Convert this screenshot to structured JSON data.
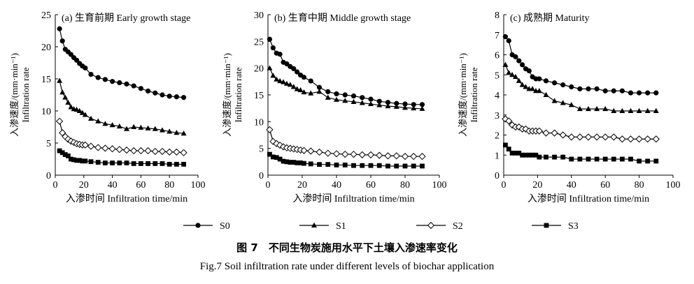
{
  "figure": {
    "title_cn": "图 7　不同生物炭施用水平下土壤入渗速率变化",
    "title_en": "Fig.7   Soil infiltration rate under different levels of biochar application"
  },
  "legend": {
    "placement": "bottom",
    "items": [
      {
        "name": "S0",
        "marker": "circle-filled"
      },
      {
        "name": "S1",
        "marker": "triangle-filled"
      },
      {
        "name": "S2",
        "marker": "diamond-open"
      },
      {
        "name": "S3",
        "marker": "square-filled"
      }
    ]
  },
  "chart_data": [
    {
      "type": "line",
      "title": "(a) 生育前期 Early growth stage",
      "xlabel": "入渗时间 Infiltration time/min",
      "ylabel": "入渗速度/(mm·min⁻¹)",
      "ylabel_en": "Infiltration rate",
      "xlim": [
        0,
        100
      ],
      "ylim": [
        0,
        25
      ],
      "xticks": [
        0,
        20,
        40,
        60,
        80,
        100
      ],
      "yticks": [
        0,
        5,
        10,
        15,
        20,
        25
      ],
      "grid": false,
      "series": [
        {
          "name": "S0",
          "marker": "circle-filled",
          "x": [
            3,
            5,
            7,
            9,
            11,
            13,
            15,
            17,
            19,
            21,
            25,
            30,
            35,
            40,
            45,
            50,
            55,
            60,
            65,
            70,
            75,
            80,
            85,
            90
          ],
          "y": [
            22.8,
            20.9,
            19.6,
            19.2,
            18.8,
            18.3,
            17.9,
            17.4,
            17.0,
            16.7,
            15.7,
            15.2,
            14.9,
            14.6,
            14.4,
            14.2,
            13.9,
            13.5,
            13.1,
            12.8,
            12.5,
            12.3,
            12.2,
            12.1
          ]
        },
        {
          "name": "S1",
          "marker": "triangle-filled",
          "x": [
            3,
            5,
            7,
            9,
            11,
            13,
            15,
            17,
            19,
            21,
            25,
            30,
            35,
            40,
            45,
            50,
            55,
            60,
            65,
            70,
            75,
            80,
            85,
            90
          ],
          "y": [
            14.7,
            12.9,
            12.1,
            11.3,
            10.6,
            10.3,
            10.2,
            10.0,
            9.7,
            9.4,
            8.8,
            8.4,
            8.0,
            7.8,
            7.6,
            7.2,
            7.5,
            7.4,
            7.3,
            7.2,
            7.0,
            6.8,
            6.6,
            6.5
          ]
        },
        {
          "name": "S2",
          "marker": "diamond-open",
          "x": [
            3,
            5,
            7,
            9,
            11,
            13,
            15,
            17,
            19,
            21,
            25,
            30,
            35,
            40,
            45,
            50,
            55,
            60,
            65,
            70,
            75,
            80,
            85,
            90
          ],
          "y": [
            8.4,
            6.6,
            6.0,
            5.6,
            5.3,
            5.1,
            4.9,
            4.8,
            4.7,
            4.7,
            4.5,
            4.3,
            4.2,
            4.1,
            4.0,
            3.9,
            3.8,
            3.8,
            3.8,
            3.7,
            3.7,
            3.6,
            3.6,
            3.5
          ]
        },
        {
          "name": "S3",
          "marker": "square-filled",
          "x": [
            3,
            5,
            7,
            9,
            11,
            13,
            15,
            17,
            19,
            21,
            25,
            30,
            35,
            40,
            45,
            50,
            55,
            60,
            65,
            70,
            75,
            80,
            85,
            90
          ],
          "y": [
            3.8,
            3.5,
            3.2,
            3.0,
            2.5,
            2.4,
            2.3,
            2.3,
            2.2,
            2.2,
            2.1,
            2.0,
            1.9,
            1.9,
            1.9,
            1.9,
            1.8,
            1.8,
            1.8,
            1.8,
            1.8,
            1.7,
            1.7,
            1.7
          ]
        }
      ]
    },
    {
      "type": "line",
      "title": "(b) 生育中期 Middle growth stage",
      "xlabel": "入渗时间 Infiltration time/min",
      "ylabel": "入渗速度/(mm·min⁻¹)",
      "ylabel_en": "Infiltration rate",
      "xlim": [
        0,
        100
      ],
      "ylim": [
        0,
        30
      ],
      "xticks": [
        0,
        20,
        40,
        60,
        80,
        100
      ],
      "yticks": [
        0,
        5,
        10,
        15,
        20,
        25,
        30
      ],
      "grid": false,
      "series": [
        {
          "name": "S0",
          "marker": "circle-filled",
          "x": [
            1,
            3,
            5,
            7,
            9,
            11,
            13,
            15,
            17,
            19,
            21,
            25,
            30,
            35,
            40,
            45,
            50,
            55,
            60,
            65,
            70,
            75,
            80,
            85,
            90
          ],
          "y": [
            25.4,
            23.8,
            22.8,
            22.6,
            21.1,
            20.8,
            20.3,
            19.9,
            19.3,
            18.7,
            18.3,
            17.6,
            16.4,
            15.6,
            15.2,
            15.0,
            14.8,
            14.5,
            14.2,
            13.8,
            13.6,
            13.4,
            13.3,
            13.2,
            13.2
          ]
        },
        {
          "name": "S1",
          "marker": "triangle-filled",
          "x": [
            1,
            3,
            5,
            7,
            9,
            11,
            13,
            15,
            17,
            19,
            21,
            25,
            30,
            35,
            40,
            45,
            50,
            55,
            60,
            65,
            70,
            75,
            80,
            85,
            90
          ],
          "y": [
            20.0,
            18.6,
            17.9,
            17.6,
            17.4,
            17.1,
            16.9,
            16.5,
            16.1,
            15.9,
            15.5,
            15.3,
            15.6,
            14.5,
            14.1,
            13.9,
            13.7,
            13.5,
            13.3,
            13.1,
            12.9,
            12.8,
            12.6,
            12.5,
            12.4
          ]
        },
        {
          "name": "S2",
          "marker": "diamond-open",
          "x": [
            1,
            3,
            5,
            7,
            9,
            11,
            13,
            15,
            17,
            19,
            21,
            25,
            30,
            35,
            40,
            45,
            50,
            55,
            60,
            65,
            70,
            75,
            80,
            85,
            90
          ],
          "y": [
            8.5,
            6.3,
            5.9,
            5.6,
            5.3,
            5.1,
            5.0,
            4.9,
            4.8,
            4.7,
            4.6,
            4.5,
            4.3,
            4.1,
            4.0,
            3.9,
            3.9,
            3.8,
            3.8,
            3.7,
            3.6,
            3.6,
            3.5,
            3.5,
            3.5
          ]
        },
        {
          "name": "S3",
          "marker": "square-filled",
          "x": [
            1,
            3,
            5,
            7,
            9,
            11,
            13,
            15,
            17,
            19,
            21,
            25,
            30,
            35,
            40,
            45,
            50,
            55,
            60,
            65,
            70,
            75,
            80,
            85,
            90
          ],
          "y": [
            3.9,
            3.4,
            3.3,
            3.0,
            2.6,
            2.5,
            2.4,
            2.4,
            2.3,
            2.3,
            2.2,
            2.1,
            2.0,
            2.0,
            1.9,
            1.9,
            1.8,
            1.8,
            1.8,
            1.8,
            1.7,
            1.7,
            1.7,
            1.7,
            1.7
          ]
        }
      ]
    },
    {
      "type": "line",
      "title": "(c) 成熟期 Maturity",
      "xlabel": "入渗时间 Infiltration time/min",
      "ylabel": "入渗速度/(mm·min⁻¹)",
      "ylabel_en": "Infiltration rate",
      "xlim": [
        0,
        100
      ],
      "ylim": [
        0,
        8
      ],
      "xticks": [
        0,
        20,
        40,
        60,
        80,
        100
      ],
      "yticks": [
        0,
        1,
        2,
        3,
        4,
        5,
        6,
        7,
        8
      ],
      "grid": false,
      "series": [
        {
          "name": "S0",
          "marker": "circle-filled",
          "x": [
            1,
            3,
            5,
            7,
            9,
            11,
            13,
            15,
            17,
            19,
            21,
            25,
            30,
            35,
            40,
            45,
            50,
            55,
            60,
            65,
            70,
            75,
            80,
            85,
            90
          ],
          "y": [
            6.9,
            6.7,
            6.0,
            5.9,
            5.7,
            5.5,
            5.3,
            5.2,
            4.9,
            4.8,
            4.8,
            4.7,
            4.6,
            4.5,
            4.4,
            4.3,
            4.3,
            4.3,
            4.2,
            4.2,
            4.2,
            4.1,
            4.1,
            4.1,
            4.1
          ]
        },
        {
          "name": "S1",
          "marker": "triangle-filled",
          "x": [
            1,
            3,
            5,
            7,
            9,
            11,
            13,
            15,
            17,
            19,
            21,
            25,
            30,
            35,
            40,
            45,
            50,
            55,
            60,
            65,
            70,
            75,
            80,
            85,
            90
          ],
          "y": [
            5.5,
            5.1,
            5.0,
            4.9,
            4.7,
            4.5,
            4.4,
            4.3,
            4.3,
            4.2,
            4.2,
            4.0,
            3.7,
            3.6,
            3.5,
            3.3,
            3.3,
            3.3,
            3.3,
            3.2,
            3.2,
            3.2,
            3.2,
            3.2,
            3.2
          ]
        },
        {
          "name": "S2",
          "marker": "diamond-open",
          "x": [
            1,
            3,
            5,
            7,
            9,
            11,
            13,
            15,
            17,
            19,
            21,
            25,
            30,
            35,
            40,
            45,
            50,
            55,
            60,
            65,
            70,
            75,
            80,
            85,
            90
          ],
          "y": [
            2.8,
            2.7,
            2.5,
            2.4,
            2.4,
            2.3,
            2.3,
            2.2,
            2.2,
            2.2,
            2.2,
            2.1,
            2.1,
            2.0,
            1.9,
            1.9,
            1.9,
            1.9,
            1.9,
            1.9,
            1.8,
            1.8,
            1.8,
            1.8,
            1.8
          ]
        },
        {
          "name": "S3",
          "marker": "square-filled",
          "x": [
            1,
            3,
            5,
            7,
            9,
            11,
            13,
            15,
            17,
            19,
            21,
            25,
            30,
            35,
            40,
            45,
            50,
            55,
            60,
            65,
            70,
            75,
            80,
            85,
            90
          ],
          "y": [
            1.5,
            1.3,
            1.1,
            1.1,
            1.1,
            1.0,
            1.0,
            1.0,
            1.0,
            1.0,
            0.9,
            0.9,
            0.9,
            0.9,
            0.8,
            0.8,
            0.8,
            0.8,
            0.8,
            0.8,
            0.8,
            0.8,
            0.7,
            0.7,
            0.7
          ]
        }
      ]
    }
  ]
}
